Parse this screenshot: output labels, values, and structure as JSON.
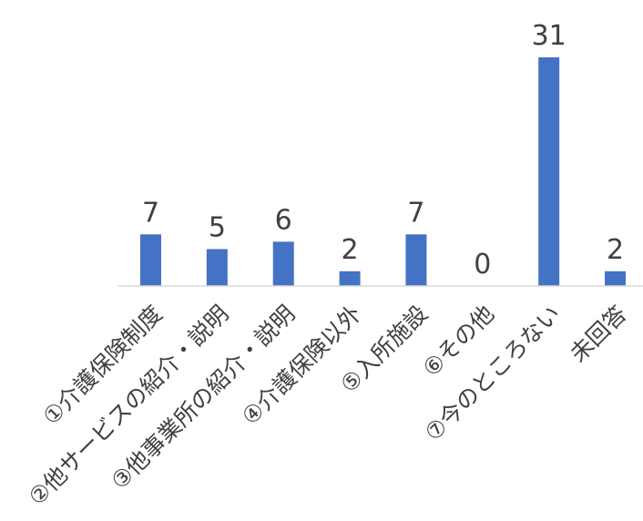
{
  "chart_data": {
    "type": "bar",
    "categories": [
      "①介護保険制度",
      "②他サービスの紹介・説明",
      "③他事業所の紹介・説明",
      "④介護保険以外",
      "⑤入所施設",
      "⑥その他",
      "⑦今のところない",
      "未回答"
    ],
    "values": [
      7,
      5,
      6,
      2,
      7,
      0,
      31,
      2
    ],
    "ylim": [
      0,
      35
    ],
    "grid": false,
    "legend": "none",
    "colors": {
      "bar": "#4472C4",
      "axis": "#D9D9D9",
      "text": "#404040"
    }
  }
}
